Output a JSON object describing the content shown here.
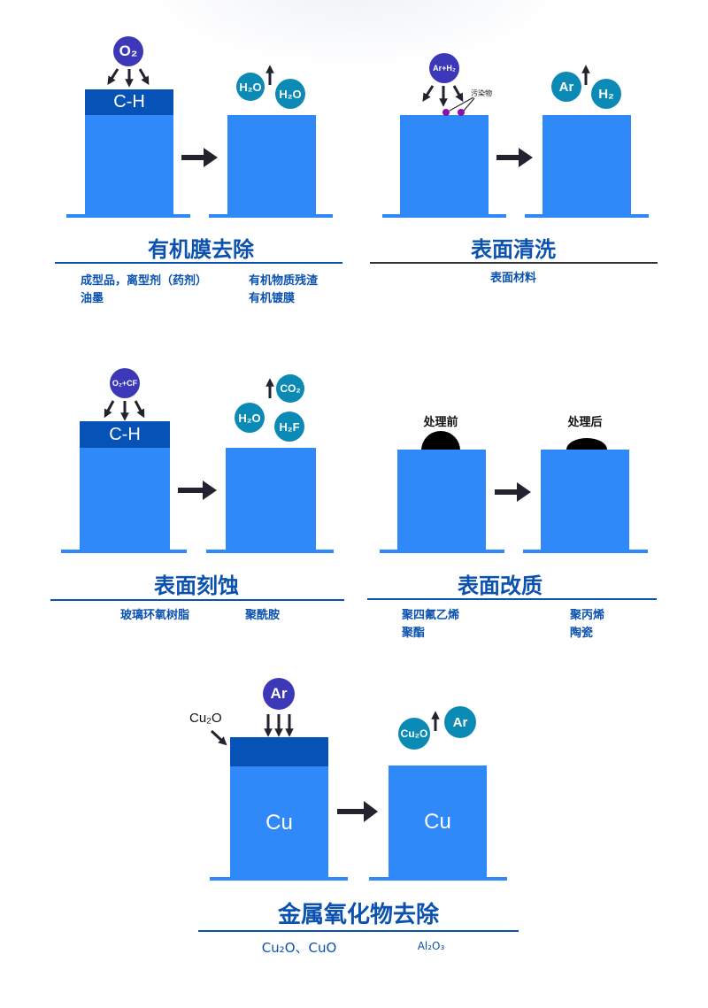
{
  "colors": {
    "block": "#2f89f8",
    "layer": "#0752b6",
    "reactant": "#3c38b8",
    "product": "#0a8ab4",
    "title": "#0b52b0",
    "arrow": "#24222e",
    "contaminant": "#8a10b0"
  },
  "panels": {
    "organic": {
      "reactant": "O₂",
      "layer": "C-H",
      "products": [
        "H₂O",
        "H₂O"
      ],
      "title": "有机膜去除",
      "items_left": [
        "成型品，离型剂（药剂）",
        "油墨"
      ],
      "items_right": [
        "有机物质残渣",
        "有机镀膜"
      ]
    },
    "cleaning": {
      "reactant": "Ar+H₂",
      "contaminant_label": "污染物",
      "products": [
        "Ar",
        "H₂"
      ],
      "title": "表面清洗",
      "items": [
        "表面材料"
      ]
    },
    "etching": {
      "reactant": "O₂+CF",
      "layer": "C-H",
      "products": [
        "CO₂",
        "H₂O",
        "H₂F"
      ],
      "title": "表面刻蚀",
      "items_left": [
        "玻璃环氧树脂"
      ],
      "items_right": [
        "聚酰胺"
      ]
    },
    "modification": {
      "before": "处理前",
      "after": "处理后",
      "title": "表面改质",
      "items_left": [
        "聚四氟乙烯",
        "聚酯"
      ],
      "items_right": [
        "聚丙烯",
        "陶瓷"
      ]
    },
    "oxide": {
      "reactant": "Ar",
      "layer_label": "Cu₂O",
      "substrate": "Cu",
      "products": [
        "Cu₂O",
        "Ar"
      ],
      "title": "金属氧化物去除",
      "items_left": [
        "Cu₂O、CuO"
      ],
      "items_right": [
        "Al₂O₃"
      ]
    }
  }
}
